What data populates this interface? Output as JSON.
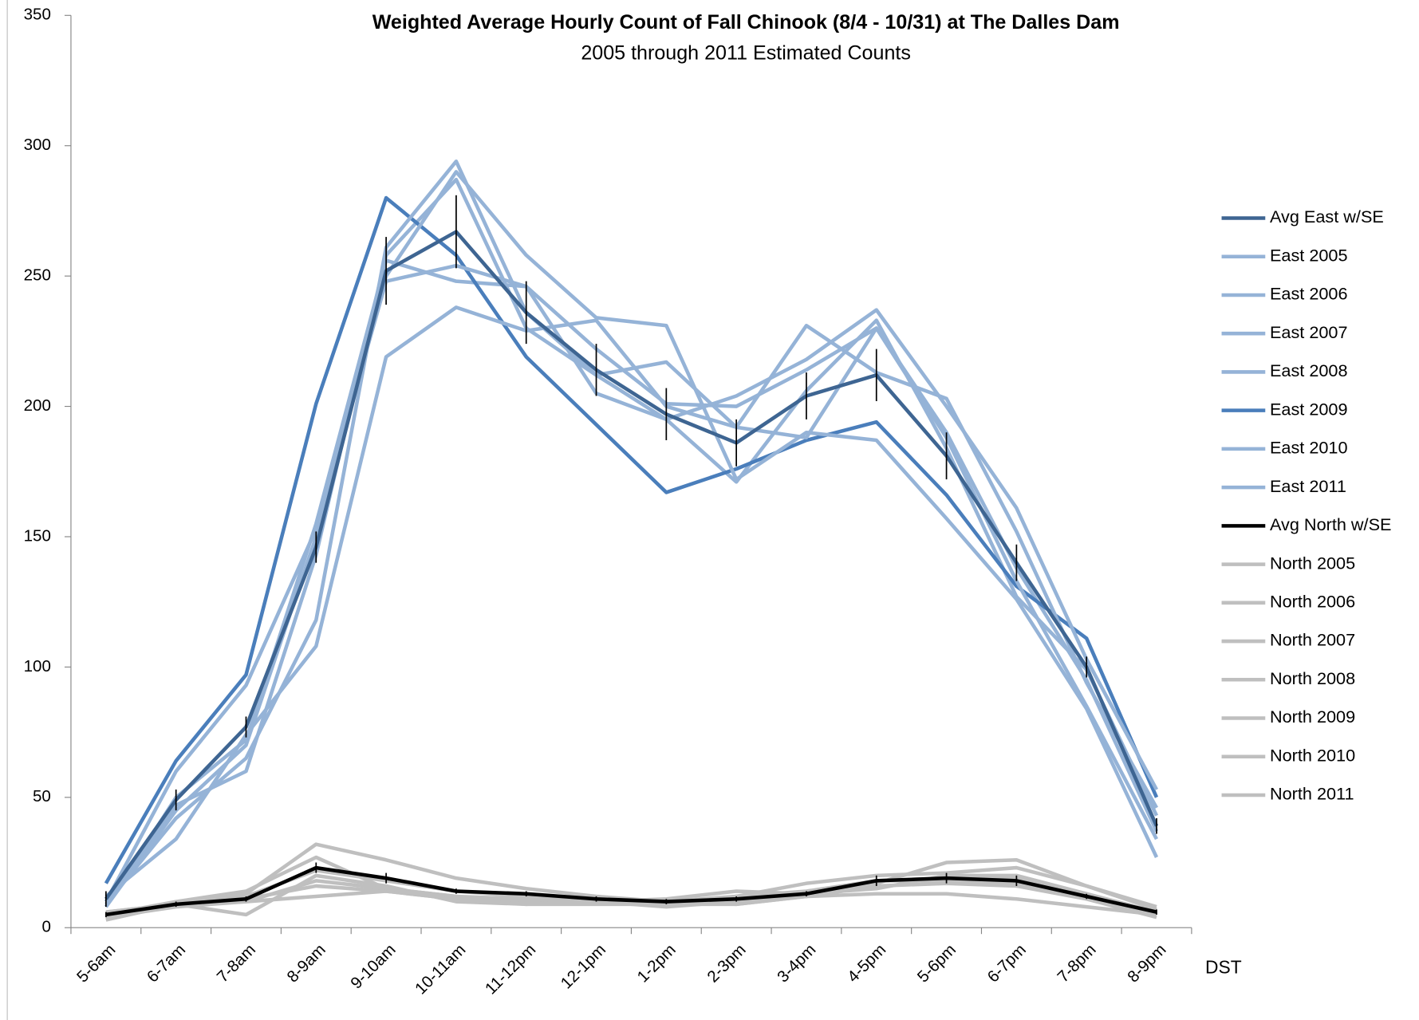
{
  "chart_data": {
    "type": "line",
    "title": "Weighted Average Hourly Count of Fall Chinook (8/4 - 10/31) at The Dalles Dam",
    "subtitle": "2005 through 2011 Estimated Counts",
    "x_label": "DST",
    "categories": [
      "5-6am",
      "6-7am",
      "7-8am",
      "8-9am",
      "9-10am",
      "10-11am",
      "11-12pm",
      "12-1pm",
      "1-2pm",
      "2-3pm",
      "3-4pm",
      "4-5pm",
      "5-6pm",
      "6-7pm",
      "7-8pm",
      "8-9pm"
    ],
    "ylim": [
      0,
      350
    ],
    "yticks": [
      0,
      50,
      100,
      150,
      200,
      250,
      300,
      350
    ],
    "legend": "right",
    "series": [
      {
        "name": "Avg East w/SE",
        "color": "#3e6592",
        "values": [
          11,
          49,
          77,
          146,
          252,
          267,
          236,
          214,
          197,
          186,
          204,
          212,
          181,
          140,
          100,
          39
        ],
        "errors": [
          3,
          4,
          4,
          6,
          13,
          14,
          12,
          10,
          10,
          9,
          9,
          10,
          9,
          7,
          4,
          3
        ]
      },
      {
        "name": "East 2005",
        "color": "#95b3d7",
        "values": [
          8,
          45,
          70,
          150,
          250,
          290,
          258,
          234,
          231,
          172,
          190,
          187,
          157,
          126,
          84,
          27
        ]
      },
      {
        "name": "East 2006",
        "color": "#95b3d7",
        "values": [
          10,
          60,
          93,
          153,
          248,
          254,
          246,
          205,
          195,
          204,
          218,
          237,
          200,
          161,
          103,
          53
        ]
      },
      {
        "name": "East 2007",
        "color": "#95b3d7",
        "values": [
          9,
          42,
          65,
          118,
          261,
          294,
          236,
          212,
          217,
          192,
          231,
          213,
          203,
          152,
          94,
          46
        ]
      },
      {
        "name": "East 2008",
        "color": "#95b3d7",
        "values": [
          12,
          34,
          74,
          108,
          219,
          238,
          229,
          233,
          200,
          192,
          188,
          230,
          188,
          133,
          85,
          34
        ]
      },
      {
        "name": "East 2009",
        "color": "#4a7ebb",
        "values": [
          17,
          64,
          97,
          201,
          280,
          258,
          219,
          193,
          167,
          176,
          187,
          194,
          166,
          131,
          111,
          50
        ]
      },
      {
        "name": "East 2010",
        "color": "#95b3d7",
        "values": [
          10,
          47,
          60,
          143,
          258,
          287,
          230,
          212,
          195,
          171,
          206,
          233,
          184,
          127,
          99,
          43
        ]
      },
      {
        "name": "East 2011",
        "color": "#95b3d7",
        "values": [
          8,
          50,
          72,
          155,
          256,
          248,
          246,
          222,
          201,
          200,
          214,
          230,
          190,
          138,
          95,
          37
        ]
      },
      {
        "name": "Avg North w/SE",
        "color": "#000000",
        "values": [
          5,
          9,
          11,
          23,
          19,
          14,
          13,
          11,
          10,
          11,
          13,
          18,
          19,
          18,
          12,
          6
        ],
        "errors": [
          1,
          1,
          1,
          2,
          2,
          1,
          1,
          1,
          1,
          1,
          1,
          2,
          2,
          2,
          1,
          1
        ]
      },
      {
        "name": "North 2005",
        "color": "#bfbfbf",
        "values": [
          3,
          9,
          5,
          20,
          16,
          10,
          9,
          9,
          9,
          9,
          12,
          17,
          25,
          26,
          16,
          7
        ]
      },
      {
        "name": "North 2006",
        "color": "#bfbfbf",
        "values": [
          6,
          9,
          13,
          32,
          26,
          19,
          15,
          12,
          10,
          12,
          17,
          20,
          21,
          23,
          16,
          8
        ]
      },
      {
        "name": "North 2007",
        "color": "#bfbfbf",
        "values": [
          5,
          10,
          14,
          27,
          15,
          12,
          11,
          10,
          11,
          14,
          13,
          15,
          20,
          20,
          13,
          6
        ]
      },
      {
        "name": "North 2008",
        "color": "#bfbfbf",
        "values": [
          4,
          8,
          10,
          12,
          14,
          11,
          9,
          10,
          8,
          10,
          12,
          13,
          13,
          11,
          8,
          5
        ]
      },
      {
        "name": "North 2009",
        "color": "#bfbfbf",
        "values": [
          6,
          9,
          12,
          22,
          18,
          14,
          12,
          11,
          9,
          12,
          14,
          18,
          18,
          17,
          12,
          5
        ]
      },
      {
        "name": "North 2010",
        "color": "#bfbfbf",
        "values": [
          3,
          9,
          10,
          18,
          15,
          12,
          10,
          10,
          9,
          12,
          12,
          18,
          19,
          19,
          13,
          5
        ]
      },
      {
        "name": "North 2011",
        "color": "#bfbfbf",
        "values": [
          5,
          9,
          11,
          16,
          14,
          11,
          10,
          11,
          10,
          9,
          12,
          16,
          17,
          16,
          11,
          4
        ]
      }
    ]
  }
}
